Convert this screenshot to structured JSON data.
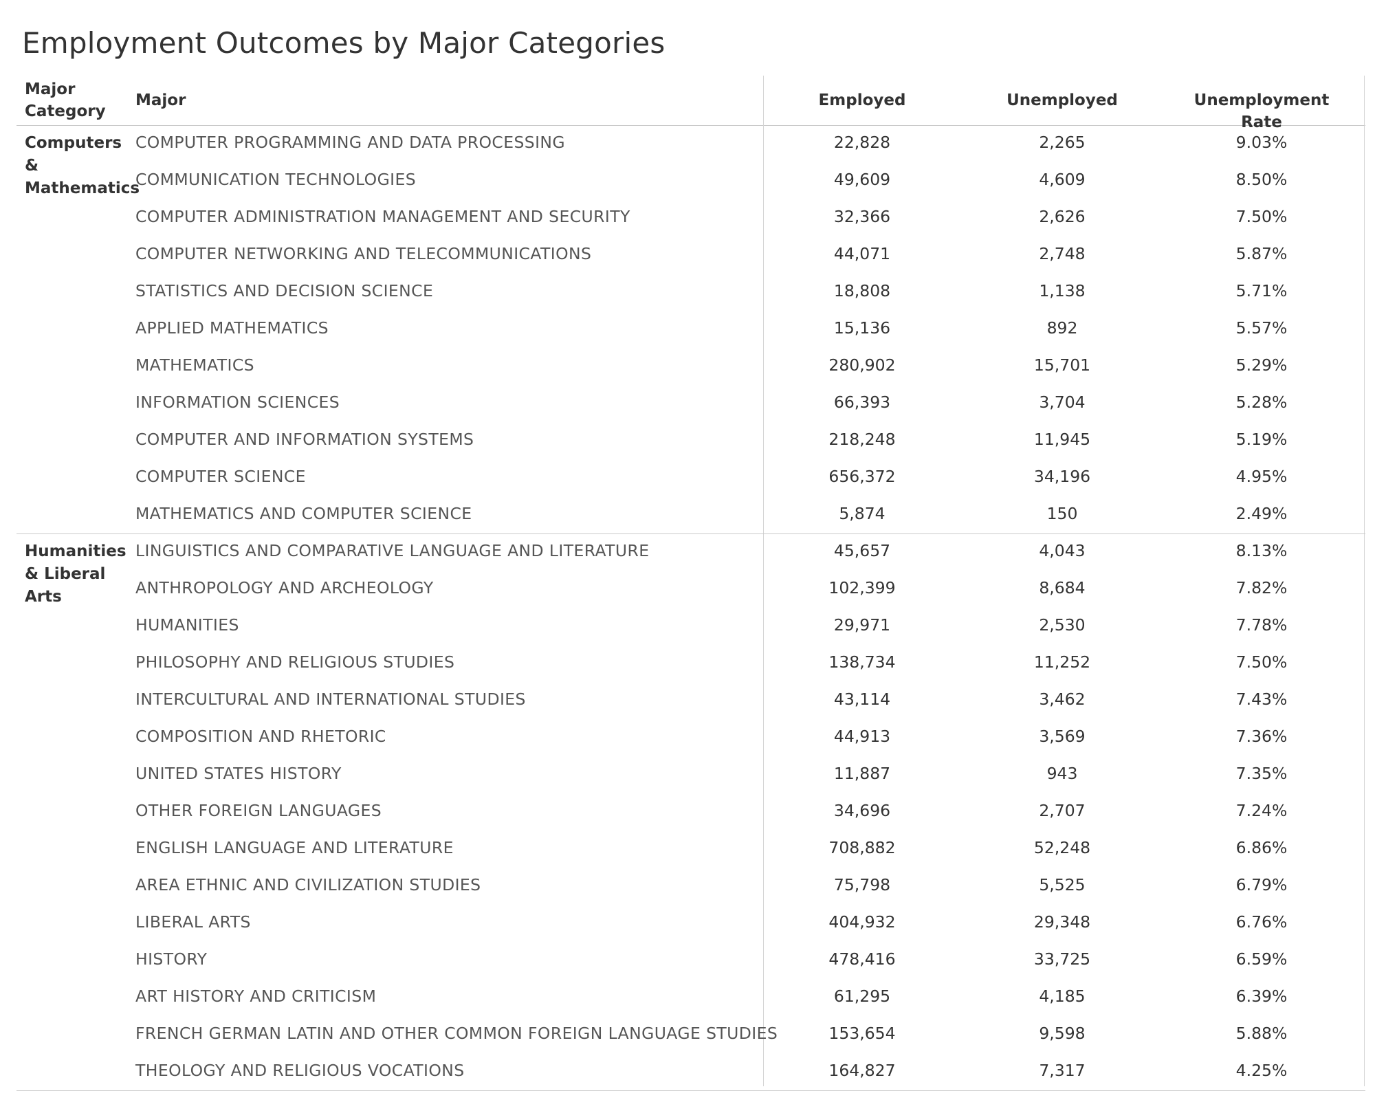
{
  "title": "Employment Outcomes by Major Categories",
  "headers": {
    "major_category": "Major Category",
    "major": "Major",
    "employed": "Employed",
    "unemployed": "Unemployed",
    "unemployment_rate": "Unemployment Rate"
  },
  "chart_data": {
    "type": "table",
    "title": "Employment Outcomes by Major Categories",
    "columns": [
      "Major Category",
      "Major",
      "Employed",
      "Unemployed",
      "Unemployment Rate"
    ],
    "groups": [
      {
        "category": "Computers & Mathematics",
        "rows": [
          {
            "major": "COMPUTER PROGRAMMING AND DATA PROCESSING",
            "employed": "22,828",
            "unemployed": "2,265",
            "rate": "9.03%"
          },
          {
            "major": "COMMUNICATION TECHNOLOGIES",
            "employed": "49,609",
            "unemployed": "4,609",
            "rate": "8.50%"
          },
          {
            "major": "COMPUTER ADMINISTRATION MANAGEMENT AND SECURITY",
            "employed": "32,366",
            "unemployed": "2,626",
            "rate": "7.50%"
          },
          {
            "major": "COMPUTER NETWORKING AND TELECOMMUNICATIONS",
            "employed": "44,071",
            "unemployed": "2,748",
            "rate": "5.87%"
          },
          {
            "major": "STATISTICS AND DECISION SCIENCE",
            "employed": "18,808",
            "unemployed": "1,138",
            "rate": "5.71%"
          },
          {
            "major": "APPLIED MATHEMATICS",
            "employed": "15,136",
            "unemployed": "892",
            "rate": "5.57%"
          },
          {
            "major": "MATHEMATICS",
            "employed": "280,902",
            "unemployed": "15,701",
            "rate": "5.29%"
          },
          {
            "major": "INFORMATION SCIENCES",
            "employed": "66,393",
            "unemployed": "3,704",
            "rate": "5.28%"
          },
          {
            "major": "COMPUTER AND INFORMATION SYSTEMS",
            "employed": "218,248",
            "unemployed": "11,945",
            "rate": "5.19%"
          },
          {
            "major": "COMPUTER SCIENCE",
            "employed": "656,372",
            "unemployed": "34,196",
            "rate": "4.95%"
          },
          {
            "major": "MATHEMATICS AND COMPUTER SCIENCE",
            "employed": "5,874",
            "unemployed": "150",
            "rate": "2.49%"
          }
        ]
      },
      {
        "category": "Humanities & Liberal Arts",
        "rows": [
          {
            "major": "LINGUISTICS AND COMPARATIVE LANGUAGE AND LITERATURE",
            "employed": "45,657",
            "unemployed": "4,043",
            "rate": "8.13%"
          },
          {
            "major": "ANTHROPOLOGY AND ARCHEOLOGY",
            "employed": "102,399",
            "unemployed": "8,684",
            "rate": "7.82%"
          },
          {
            "major": "HUMANITIES",
            "employed": "29,971",
            "unemployed": "2,530",
            "rate": "7.78%"
          },
          {
            "major": "PHILOSOPHY AND RELIGIOUS STUDIES",
            "employed": "138,734",
            "unemployed": "11,252",
            "rate": "7.50%"
          },
          {
            "major": "INTERCULTURAL AND INTERNATIONAL STUDIES",
            "employed": "43,114",
            "unemployed": "3,462",
            "rate": "7.43%"
          },
          {
            "major": "COMPOSITION AND RHETORIC",
            "employed": "44,913",
            "unemployed": "3,569",
            "rate": "7.36%"
          },
          {
            "major": "UNITED STATES HISTORY",
            "employed": "11,887",
            "unemployed": "943",
            "rate": "7.35%"
          },
          {
            "major": "OTHER FOREIGN LANGUAGES",
            "employed": "34,696",
            "unemployed": "2,707",
            "rate": "7.24%"
          },
          {
            "major": "ENGLISH LANGUAGE AND LITERATURE",
            "employed": "708,882",
            "unemployed": "52,248",
            "rate": "6.86%"
          },
          {
            "major": "AREA ETHNIC AND CIVILIZATION STUDIES",
            "employed": "75,798",
            "unemployed": "5,525",
            "rate": "6.79%"
          },
          {
            "major": "LIBERAL ARTS",
            "employed": "404,932",
            "unemployed": "29,348",
            "rate": "6.76%"
          },
          {
            "major": "HISTORY",
            "employed": "478,416",
            "unemployed": "33,725",
            "rate": "6.59%"
          },
          {
            "major": "ART HISTORY AND CRITICISM",
            "employed": "61,295",
            "unemployed": "4,185",
            "rate": "6.39%"
          },
          {
            "major": "FRENCH GERMAN LATIN AND OTHER COMMON FOREIGN LANGUAGE STUDIES",
            "employed": "153,654",
            "unemployed": "9,598",
            "rate": "5.88%"
          },
          {
            "major": "THEOLOGY AND RELIGIOUS VOCATIONS",
            "employed": "164,827",
            "unemployed": "7,317",
            "rate": "4.25%"
          }
        ]
      }
    ]
  }
}
